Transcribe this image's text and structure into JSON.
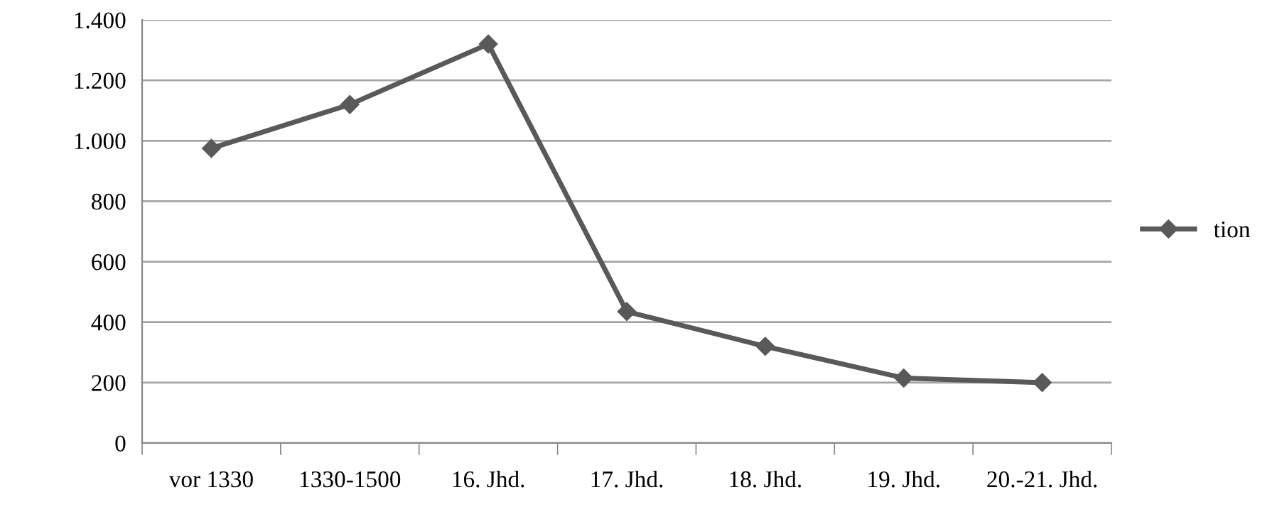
{
  "chart_data": {
    "type": "line",
    "categories": [
      "vor 1330",
      "1330-1500",
      "16. Jhd.",
      "17. Jhd.",
      "18. Jhd.",
      "19. Jhd.",
      "20.-21. Jhd."
    ],
    "series": [
      {
        "name": "tion",
        "color": "#595959",
        "values": [
          975,
          1120,
          1320,
          435,
          320,
          215,
          200
        ]
      }
    ],
    "ylim": [
      0,
      1400
    ],
    "yticks": [
      0,
      {
        "value": 200,
        "label": "200"
      },
      {
        "value": 400,
        "label": "400"
      },
      {
        "value": 600,
        "label": "600"
      },
      {
        "value": 800,
        "label": "800"
      },
      {
        "value": 1000,
        "label": "1.000"
      },
      {
        "value": 1200,
        "label": "1.200"
      },
      {
        "value": 1400,
        "label": "1.400"
      }
    ],
    "grid": "y",
    "legend": "right",
    "marker": "diamond",
    "line_style": "solid"
  }
}
